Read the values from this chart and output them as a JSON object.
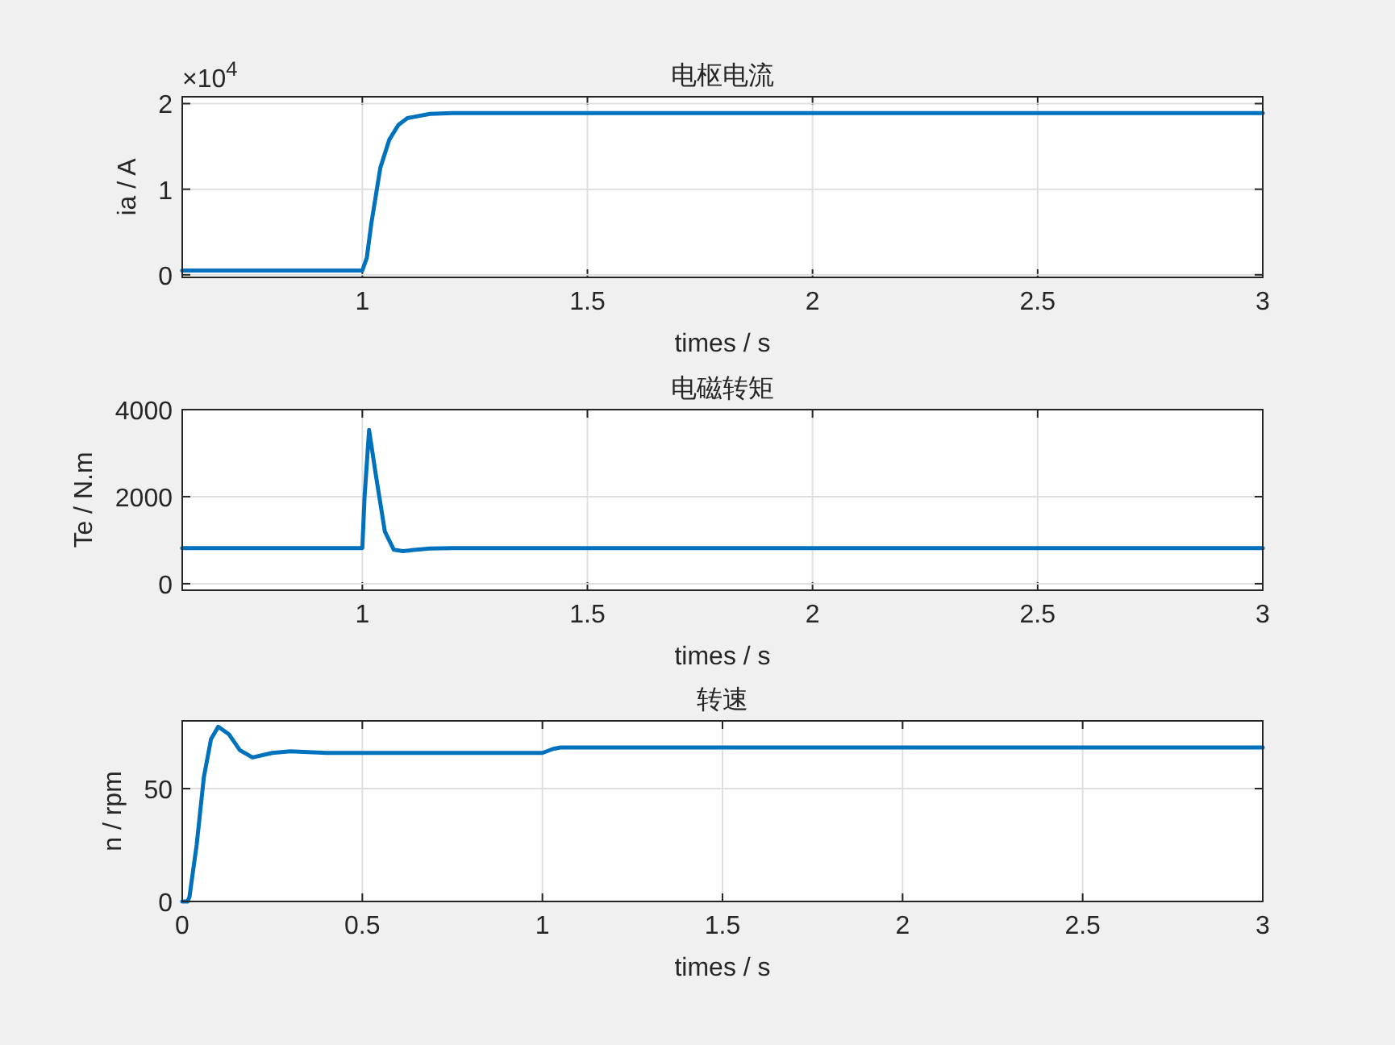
{
  "chart_data": [
    {
      "type": "line",
      "title": "电枢电流",
      "xlabel": "times / s",
      "ylabel": "ia / A",
      "annotations": [
        "×10$^{4}$"
      ],
      "xlim": [
        0.6,
        3
      ],
      "ylim": [
        -0.03,
        2.08
      ],
      "xticks": [
        1,
        1.5,
        2,
        2.5,
        3
      ],
      "yticks": [
        0,
        1,
        2
      ],
      "grid": true,
      "x": [
        0.6,
        1.0,
        1.01,
        1.02,
        1.04,
        1.06,
        1.08,
        1.1,
        1.15,
        1.2,
        3
      ],
      "series": [
        {
          "color": "#0072bd",
          "values": [
            0.05,
            0.05,
            0.2,
            0.6,
            1.25,
            1.58,
            1.75,
            1.83,
            1.88,
            1.89,
            1.89
          ]
        }
      ]
    },
    {
      "type": "line",
      "title": "电磁转矩",
      "xlabel": "times / s",
      "ylabel": "Te / N.m",
      "xlim": [
        0.6,
        3
      ],
      "ylim": [
        -150,
        4000
      ],
      "xticks": [
        1,
        1.5,
        2,
        2.5,
        3
      ],
      "yticks": [
        0,
        2000,
        4000
      ],
      "grid": true,
      "x": [
        0.6,
        1.0,
        1.005,
        1.015,
        1.03,
        1.05,
        1.07,
        1.09,
        1.15,
        1.2,
        3
      ],
      "series": [
        {
          "color": "#0072bd",
          "values": [
            820,
            820,
            2000,
            3530,
            2500,
            1200,
            780,
            750,
            810,
            820,
            820
          ]
        }
      ]
    },
    {
      "type": "line",
      "title": "转速",
      "xlabel": "times / s",
      "ylabel": "n / rpm",
      "xlim": [
        0,
        3
      ],
      "ylim": [
        0,
        80
      ],
      "xticks": [
        0,
        0.5,
        1,
        1.5,
        2,
        2.5,
        3
      ],
      "yticks": [
        0,
        50
      ],
      "grid": true,
      "x": [
        0,
        0.015,
        0.02,
        0.04,
        0.06,
        0.08,
        0.1,
        0.13,
        0.16,
        0.195,
        0.25,
        0.3,
        0.4,
        1.0,
        1.03,
        1.05,
        3
      ],
      "series": [
        {
          "color": "#0072bd",
          "values": [
            0,
            0,
            2,
            25,
            55,
            72,
            77.4,
            74,
            67,
            63.8,
            65.8,
            66.5,
            65.8,
            65.8,
            67.6,
            68.2,
            68.2
          ]
        }
      ]
    }
  ]
}
